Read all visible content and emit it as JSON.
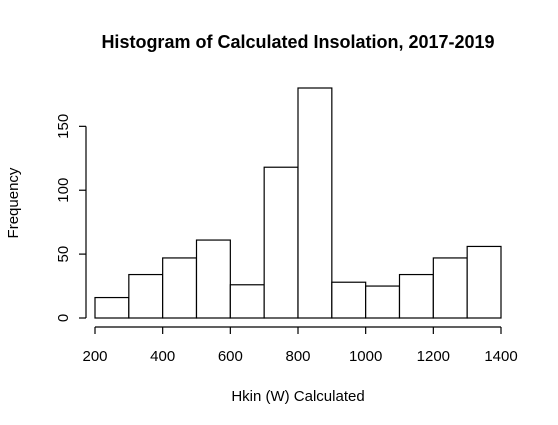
{
  "chart_data": {
    "type": "bar",
    "title": "Histogram of Calculated Insolation, 2017-2019",
    "xlabel": "Hkin (W) Calculated",
    "ylabel": "Frequency",
    "bin_edges": [
      200,
      300,
      400,
      500,
      600,
      700,
      800,
      900,
      1000,
      1100,
      1200,
      1300,
      1400
    ],
    "values": [
      16,
      34,
      47,
      61,
      26,
      118,
      180,
      28,
      25,
      34,
      47,
      56
    ],
    "xlim": [
      200,
      1400
    ],
    "ylim": [
      0,
      180
    ],
    "x_ticks": [
      200,
      400,
      600,
      800,
      1000,
      1200,
      1400
    ],
    "y_ticks": [
      0,
      50,
      100,
      150
    ],
    "bar_fill": "#ffffff",
    "bar_stroke": "#000000",
    "grid": false
  }
}
